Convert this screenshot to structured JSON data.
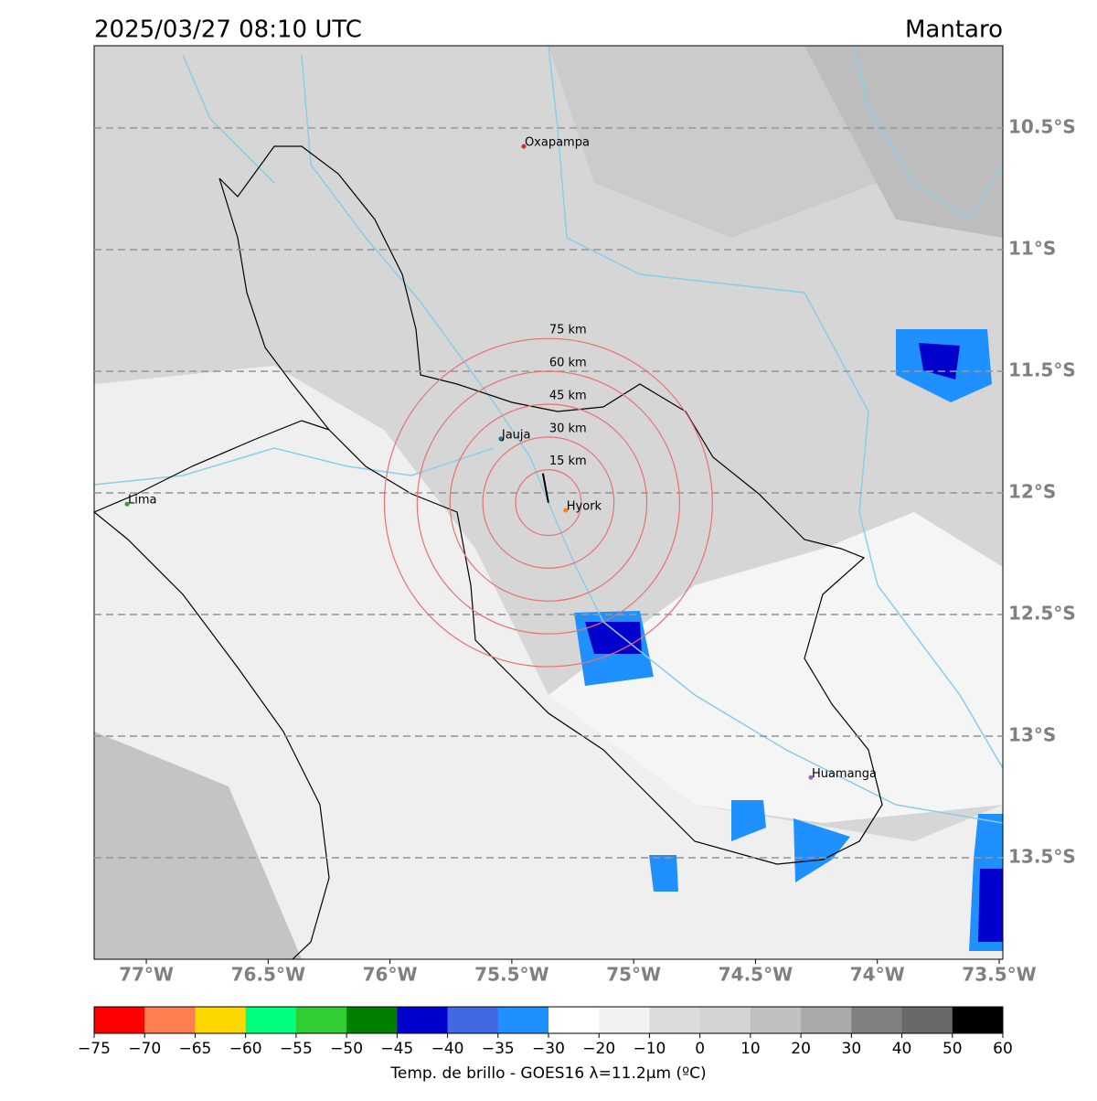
{
  "map": {
    "title": "2025/03/27 08:10 UTC",
    "region": "Mantaro",
    "xlim": [
      -77.214,
      -73.485
    ],
    "ylim": [
      -13.917,
      -10.162
    ],
    "xticks": [
      {
        "value": -77,
        "label": "77°W"
      },
      {
        "value": -76.5,
        "label": "76.5°W"
      },
      {
        "value": -76,
        "label": "76°W"
      },
      {
        "value": -75.5,
        "label": "75.5°W"
      },
      {
        "value": -75,
        "label": "75°W"
      },
      {
        "value": -74.5,
        "label": "74.5°W"
      },
      {
        "value": -74,
        "label": "74°W"
      },
      {
        "value": -73.5,
        "label": "73.5°W"
      }
    ],
    "yticks": [
      {
        "value": -10.5,
        "label": "10.5°S"
      },
      {
        "value": -11,
        "label": "11°S"
      },
      {
        "value": -11.5,
        "label": "11.5°S"
      },
      {
        "value": -12,
        "label": "12°S"
      },
      {
        "value": -12.5,
        "label": "12.5°S"
      },
      {
        "value": -13,
        "label": "13°S"
      },
      {
        "value": -13.5,
        "label": "13.5°S"
      }
    ],
    "lat_grid": true,
    "rings": {
      "center": [
        -75.35,
        -12.04
      ],
      "color": "#e87070",
      "radii": [
        {
          "value": 15,
          "label": "15 km"
        },
        {
          "value": 30,
          "label": "30 km"
        },
        {
          "value": 45,
          "label": "45 km"
        },
        {
          "value": 60,
          "label": "60 km"
        },
        {
          "value": 75,
          "label": "75 km"
        }
      ]
    },
    "cities": [
      {
        "name": "Oxapampa",
        "lon": -75.451,
        "lat": -10.576,
        "color": "#d62728"
      },
      {
        "name": "Jauja",
        "lon": -75.545,
        "lat": -11.778,
        "color": "#1f77b4"
      },
      {
        "name": "Lima",
        "lon": -77.079,
        "lat": -12.046,
        "color": "#2ca02c"
      },
      {
        "name": "Hyork",
        "lon": -75.279,
        "lat": -12.072,
        "color": "#ff7f0e"
      },
      {
        "name": "Huamanga",
        "lon": -74.273,
        "lat": -13.17,
        "color": "#9467bd"
      }
    ],
    "colorbar": {
      "label": "Temp. de brillo - GOES16 λ=11.2μm (ºC)",
      "colors": [
        "#ff0000",
        "#ff7f50",
        "#ffd700",
        "#00ff7f",
        "#32cd32",
        "#008000",
        "#0000cd",
        "#4169e1",
        "#1e90ff",
        "#ffffff",
        "#f2f2f2",
        "#dcdcdc",
        "#d3d3d3",
        "#c0c0c0",
        "#a9a9a9",
        "#808080",
        "#696969",
        "#000000"
      ],
      "ticks": [
        {
          "value": -75,
          "label": "−75"
        },
        {
          "value": -70,
          "label": "−70"
        },
        {
          "value": -65,
          "label": "−65"
        },
        {
          "value": -60,
          "label": "−60"
        },
        {
          "value": -55,
          "label": "−55"
        },
        {
          "value": -50,
          "label": "−50"
        },
        {
          "value": -45,
          "label": "−45"
        },
        {
          "value": -40,
          "label": "−40"
        },
        {
          "value": -35,
          "label": "−35"
        },
        {
          "value": -30,
          "label": "−30"
        },
        {
          "value": -20,
          "label": "−20"
        },
        {
          "value": -10,
          "label": "−10"
        },
        0,
        10,
        20,
        30,
        40,
        50,
        60
      ]
    }
  }
}
